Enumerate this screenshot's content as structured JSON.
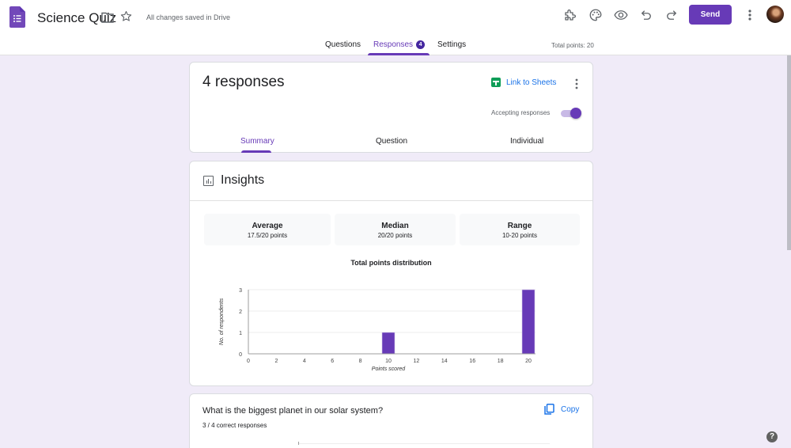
{
  "header": {
    "title": "Science Quiz",
    "save_status": "All changes saved in Drive",
    "send_label": "Send",
    "icons": [
      "forms-logo-icon",
      "folder-icon",
      "star-icon",
      "addon-puzzle-icon",
      "palette-icon",
      "preview-eye-icon",
      "undo-icon",
      "redo-icon",
      "more-vert-icon",
      "avatar"
    ]
  },
  "main_tabs": [
    {
      "label": "Questions",
      "active": false
    },
    {
      "label": "Responses",
      "active": true,
      "badge": "4"
    },
    {
      "label": "Settings",
      "active": false
    }
  ],
  "total_points": "Total points: 20",
  "responses": {
    "title": "4 responses",
    "link_sheets_label": "Link to Sheets",
    "accepting_label": "Accepting responses",
    "accepting": true,
    "sub_tabs": [
      {
        "label": "Summary",
        "active": true
      },
      {
        "label": "Question",
        "active": false
      },
      {
        "label": "Individual",
        "active": false
      }
    ]
  },
  "insights": {
    "title": "Insights",
    "stats": [
      {
        "label": "Average",
        "value": "17.5/20 points"
      },
      {
        "label": "Median",
        "value": "20/20 points"
      },
      {
        "label": "Range",
        "value": "10-20 points"
      }
    ]
  },
  "chart_data": {
    "type": "bar",
    "title": "Total points distribution",
    "xlabel": "Points scored",
    "ylabel": "No. of respondents",
    "x_ticks": [
      "0",
      "2",
      "4",
      "6",
      "8",
      "10",
      "12",
      "14",
      "16",
      "18",
      "20"
    ],
    "y_ticks": [
      "0",
      "1",
      "2",
      "3"
    ],
    "categories": [
      10,
      20
    ],
    "values": [
      1,
      3
    ],
    "xlim": [
      0,
      20
    ],
    "ylim": [
      0,
      3
    ],
    "grid": true,
    "bar_color": "#673ab7"
  },
  "question": {
    "title": "What is the biggest planet in our solar system?",
    "subtitle": "3 / 4 correct responses",
    "copy_label": "Copy"
  },
  "help_label": "?",
  "colors": {
    "accent": "#673ab7",
    "background": "#f0ebf8",
    "link": "#1a73e8",
    "sheets_green": "#0f9d58"
  }
}
